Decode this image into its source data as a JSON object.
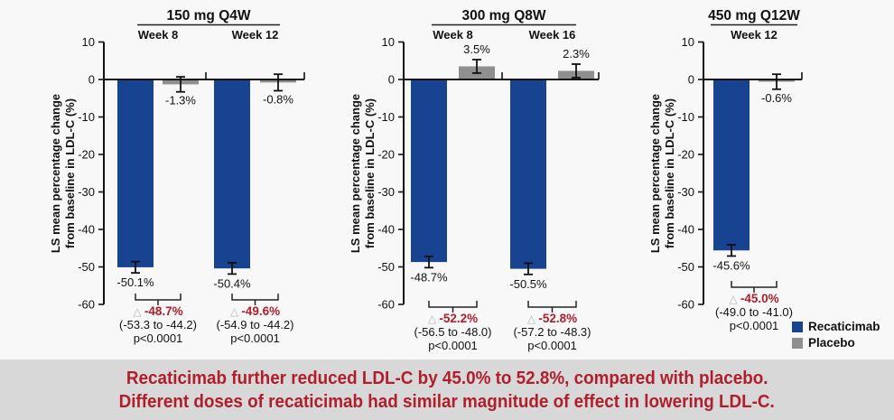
{
  "banner": {
    "line1": "Recaticimab further reduced LDL-C by 45.0% to 52.8%, compared with placebo.",
    "line2": "Different doses of recaticimab had similar magnitude of effect in lowering LDL-C."
  },
  "legend": {
    "items": [
      {
        "label": "Recaticimab",
        "color": "#174390"
      },
      {
        "label": "Placebo",
        "color": "#8f8f8f"
      }
    ]
  },
  "delta_symbol": "△",
  "colors": {
    "recaticimab": "#174390",
    "placebo": "#8f8f8f",
    "accent_red": "#b01e2c",
    "banner_bg": "#d8d8d8",
    "axis": "#111111"
  },
  "chart_data": {
    "type": "bar",
    "ylabel_line1": "LS mean percentage change",
    "ylabel_line2": "from baseline in LDL-C (%)",
    "ylim": [
      -60,
      10
    ],
    "ytick_step": 10,
    "series": [
      "Recaticimab",
      "Placebo"
    ],
    "panels": [
      {
        "title": "150 mg Q4W",
        "groups": [
          {
            "week": "Week 8",
            "recaticimab": {
              "value": -50.1,
              "label": "-50.1%",
              "err": 1.5
            },
            "placebo": {
              "value": -1.3,
              "label": "-1.3%",
              "err": 2.0
            },
            "difference": {
              "delta": "-48.7%",
              "ci": "(-53.3 to -44.2)",
              "p": "p<0.0001"
            }
          },
          {
            "week": "Week 12",
            "recaticimab": {
              "value": -50.4,
              "label": "-50.4%",
              "err": 1.5
            },
            "placebo": {
              "value": -0.8,
              "label": "-0.8%",
              "err": 2.2
            },
            "difference": {
              "delta": "-49.6%",
              "ci": "(-54.9 to -44.2)",
              "p": "p<0.0001"
            }
          }
        ]
      },
      {
        "title": "300 mg Q8W",
        "groups": [
          {
            "week": "Week 8",
            "recaticimab": {
              "value": -48.7,
              "label": "-48.7%",
              "err": 1.5
            },
            "placebo": {
              "value": 3.5,
              "label": "3.5%",
              "err": 1.8
            },
            "difference": {
              "delta": "-52.2%",
              "ci": "(-56.5 to -48.0)",
              "p": "p<0.0001"
            }
          },
          {
            "week": "Week 16",
            "recaticimab": {
              "value": -50.5,
              "label": "-50.5%",
              "err": 1.5
            },
            "placebo": {
              "value": 2.3,
              "label": "2.3%",
              "err": 1.8
            },
            "difference": {
              "delta": "-52.8%",
              "ci": "(-57.2 to -48.3)",
              "p": "p<0.0001"
            }
          }
        ]
      },
      {
        "title": "450 mg Q12W",
        "groups": [
          {
            "week": "Week 12",
            "recaticimab": {
              "value": -45.6,
              "label": "-45.6%",
              "err": 1.5
            },
            "placebo": {
              "value": -0.6,
              "label": "-0.6%",
              "err": 2.0
            },
            "difference": {
              "delta": "-45.0%",
              "ci": "(-49.0 to -41.0)",
              "p": "p<0.0001"
            }
          }
        ]
      }
    ]
  }
}
